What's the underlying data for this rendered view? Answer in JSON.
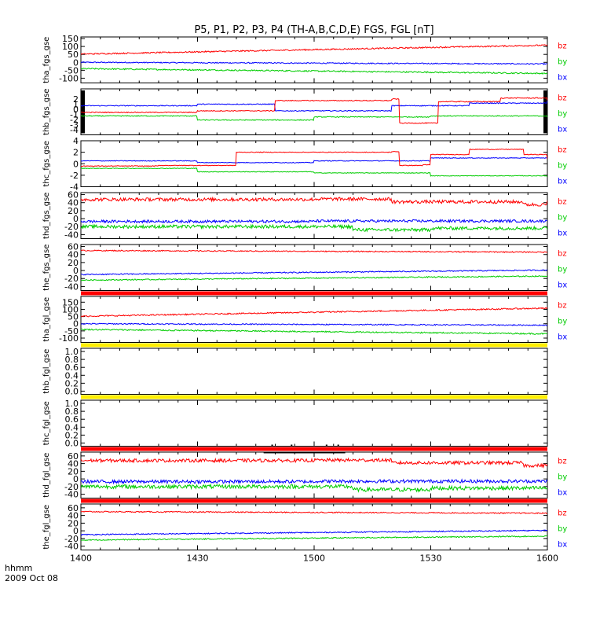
{
  "title": "P5, P1, P2, P3, P4 (TH-A,B,C,D,E) FGS, FGL [nT]",
  "time_label": "hhmm",
  "date_label": "2009 Oct 08",
  "colors": {
    "bx": "#0000ff",
    "by": "#00cc00",
    "bz": "#ff0000",
    "frame": "#000000"
  },
  "chart_data": {
    "type": "line",
    "x_ticks": [
      "1400",
      "1430",
      "1500",
      "1530",
      "1600"
    ],
    "x_range_minutes": [
      0,
      120
    ],
    "panels": [
      {
        "name": "tha-fgs-gse",
        "ylabel": "tha_fgs_gse",
        "ylim": [
          -130,
          160
        ],
        "yticks": [
          150,
          100,
          50,
          0,
          -50,
          -100
        ],
        "series": [
          {
            "name": "bz",
            "start": 52,
            "end": 108,
            "noise": 0.6
          },
          {
            "name": "by",
            "start": -40,
            "end": -70,
            "noise": 0.6
          },
          {
            "name": "bx",
            "start": 0,
            "end": -10,
            "noise": 0.5
          }
        ],
        "bar_below": null
      },
      {
        "name": "thb-fgs-gse",
        "ylabel": "thb_fgs_gse",
        "ylim": [
          -5,
          4
        ],
        "yticks": [
          2,
          1,
          0,
          -1,
          -2,
          -3,
          -4
        ],
        "series": [
          {
            "name": "bz",
            "steps": [
              [
                0,
                -0.6
              ],
              [
                30,
                -0.3
              ],
              [
                50,
                1.7
              ],
              [
                80,
                2.0
              ],
              [
                82,
                -2.7
              ],
              [
                90,
                -2.7
              ],
              [
                92,
                1.5
              ],
              [
                108,
                2.2
              ],
              [
                120,
                1.7
              ]
            ],
            "noise": 0.4
          },
          {
            "name": "by",
            "steps": [
              [
                0,
                -1.3
              ],
              [
                30,
                -2.1
              ],
              [
                60,
                -1.5
              ],
              [
                90,
                -1.3
              ],
              [
                120,
                -1.6
              ]
            ],
            "noise": 0.4
          },
          {
            "name": "bx",
            "steps": [
              [
                0,
                0.7
              ],
              [
                30,
                1.0
              ],
              [
                50,
                -0.3
              ],
              [
                80,
                0.7
              ],
              [
                100,
                1.2
              ],
              [
                120,
                1.7
              ]
            ],
            "noise": 0.4
          }
        ],
        "side_bars": true,
        "bar_below": null
      },
      {
        "name": "thc-fgs-gse",
        "ylabel": "thc_fgs_gse",
        "ylim": [
          -4,
          4
        ],
        "yticks": [
          4,
          2,
          0,
          -2,
          -4
        ],
        "series": [
          {
            "name": "bz",
            "steps": [
              [
                0,
                -0.4
              ],
              [
                20,
                -0.3
              ],
              [
                40,
                2.0
              ],
              [
                80,
                2.1
              ],
              [
                82,
                -0.3
              ],
              [
                88,
                -0.2
              ],
              [
                90,
                1.6
              ],
              [
                100,
                2.5
              ],
              [
                114,
                1.6
              ],
              [
                120,
                0.8
              ]
            ],
            "noise": 0.3
          },
          {
            "name": "by",
            "steps": [
              [
                0,
                -0.8
              ],
              [
                30,
                -1.4
              ],
              [
                60,
                -1.6
              ],
              [
                90,
                -2.1
              ],
              [
                120,
                -2.2
              ]
            ],
            "noise": 0.3
          },
          {
            "name": "bx",
            "steps": [
              [
                0,
                0.5
              ],
              [
                30,
                0.2
              ],
              [
                60,
                0.5
              ],
              [
                90,
                1.0
              ],
              [
                120,
                1.0
              ]
            ],
            "noise": 0.3
          }
        ],
        "bar_below": null
      },
      {
        "name": "thd-fgs-gse",
        "ylabel": "thd_fgs_gse",
        "ylim": [
          -50,
          65
        ],
        "yticks": [
          60,
          40,
          20,
          0,
          -20,
          -40
        ],
        "series": [
          {
            "name": "bz",
            "steps": [
              [
                0,
                48
              ],
              [
                60,
                49
              ],
              [
                80,
                42
              ],
              [
                110,
                42
              ],
              [
                114,
                35
              ],
              [
                120,
                42
              ]
            ],
            "noise": 1.5
          },
          {
            "name": "by",
            "steps": [
              [
                0,
                -20
              ],
              [
                60,
                -20
              ],
              [
                70,
                -28
              ],
              [
                90,
                -24
              ],
              [
                120,
                -25
              ]
            ],
            "noise": 1.5
          },
          {
            "name": "bx",
            "steps": [
              [
                0,
                -7
              ],
              [
                60,
                -6
              ],
              [
                90,
                -6
              ],
              [
                120,
                -4
              ]
            ],
            "noise": 1.2
          }
        ],
        "bar_below": null
      },
      {
        "name": "the-fgs-gse",
        "ylabel": "the_fgs_gse",
        "ylim": [
          -50,
          65
        ],
        "yticks": [
          60,
          40,
          20,
          0,
          -20,
          -40
        ],
        "series": [
          {
            "name": "bz",
            "start": 50,
            "end": 46,
            "noise": 0.5
          },
          {
            "name": "by",
            "start": -24,
            "end": -14,
            "noise": 0.5
          },
          {
            "name": "bx",
            "start": -10,
            "end": 1,
            "noise": 0.5
          }
        ],
        "bar_below": "#ff0000"
      },
      {
        "name": "tha-fgl-gse",
        "ylabel": "tha_fgl_gse",
        "ylim": [
          -130,
          190
        ],
        "yticks": [
          150,
          100,
          50,
          0,
          -50,
          -100
        ],
        "series": [
          {
            "name": "bz",
            "start": 52,
            "end": 108,
            "noise": 0.6
          },
          {
            "name": "by",
            "start": -40,
            "end": -70,
            "noise": 0.6
          },
          {
            "name": "bx",
            "start": 0,
            "end": -10,
            "noise": 0.5
          }
        ],
        "bar_below": "#ffee00"
      },
      {
        "name": "thb-fgl-gse",
        "ylabel": "thb_fgl_gse",
        "ylim": [
          -0.08,
          1.08
        ],
        "yticks": [
          1.0,
          0.8,
          0.6,
          0.4,
          0.2,
          0.0
        ],
        "series": [],
        "legend": false,
        "bar_below": "#ffee00"
      },
      {
        "name": "thc-fgl-gse",
        "ylabel": "thc_fgl_gse",
        "ylim": [
          -0.08,
          1.08
        ],
        "yticks": [
          1.0,
          0.8,
          0.6,
          0.4,
          0.2,
          0.0
        ],
        "series": [],
        "legend": false,
        "bar_below": "#ff0000",
        "bar_marker": true
      },
      {
        "name": "thd-fgl-gse",
        "ylabel": "thd_fgl_gse",
        "ylim": [
          -50,
          70
        ],
        "yticks": [
          60,
          40,
          20,
          0,
          -20,
          -40
        ],
        "series": [
          {
            "name": "bz",
            "steps": [
              [
                0,
                48
              ],
              [
                60,
                49
              ],
              [
                80,
                42
              ],
              [
                110,
                42
              ],
              [
                114,
                35
              ],
              [
                120,
                40
              ]
            ],
            "noise": 1.5
          },
          {
            "name": "by",
            "steps": [
              [
                0,
                -20
              ],
              [
                60,
                -20
              ],
              [
                70,
                -28
              ],
              [
                90,
                -24
              ],
              [
                120,
                -25
              ]
            ],
            "noise": 1.8
          },
          {
            "name": "bx",
            "steps": [
              [
                0,
                -7
              ],
              [
                60,
                -6
              ],
              [
                90,
                -6
              ],
              [
                120,
                -4
              ]
            ],
            "noise": 1.5
          }
        ],
        "bar_below": "#ff0000"
      },
      {
        "name": "the-fgl-gse",
        "ylabel": "the_fgl_gse",
        "ylim": [
          -50,
          70
        ],
        "yticks": [
          60,
          40,
          20,
          0,
          -20,
          -40
        ],
        "series": [
          {
            "name": "bz",
            "start": 50,
            "end": 46,
            "noise": 0.5
          },
          {
            "name": "by",
            "start": -24,
            "end": -14,
            "noise": 0.5
          },
          {
            "name": "bx",
            "start": -10,
            "end": 1,
            "noise": 0.5
          }
        ],
        "bar_below": null
      }
    ]
  }
}
